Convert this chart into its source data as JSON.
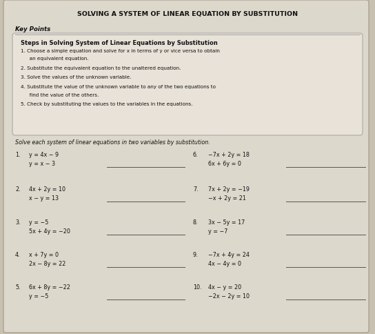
{
  "title": "SOLVING A SYSTEM OF LINEAR EQUATION BY SUBSTITUTION",
  "bg_color": "#c8c0b0",
  "paper_color": "#ddd8cc",
  "key_points_label": "Key Points",
  "box_title": "Steps in Solving System of Linear Equations by Substitution",
  "steps": [
    "1. Choose a simple equation and solve for x in terms of y or vice versa to obtain\n   an equivalent equation.",
    "2. Substitute the equivalent equation to the unaltered equation.",
    "3. Solve the values of the unknown variable.",
    "4. Substitute the value of the unknown variable to any of the two equations to\n   find the value of the others.",
    "5. Check by substituting the values to the variables in the equations."
  ],
  "solve_instruction": "Solve each system of linear equations in two variables by substitution.",
  "problems_left": [
    {
      "num": "1.",
      "eq1": "y = 4x − 9",
      "eq2": "y = x − 3"
    },
    {
      "num": "2.",
      "eq1": "4x + 2y = 10",
      "eq2": "x − y = 13"
    },
    {
      "num": "3.",
      "eq1": "y = −5",
      "eq2": "5x + 4y = −20"
    },
    {
      "num": "4.",
      "eq1": "x + 7y = 0",
      "eq2": "2x − 8y = 22"
    },
    {
      "num": "5.",
      "eq1": "6x + 8y = −22",
      "eq2": "y = −5"
    }
  ],
  "problems_right": [
    {
      "num": "6.",
      "eq1": "−7x + 2y = 18",
      "eq2": "6x + 6y = 0"
    },
    {
      "num": "7.",
      "eq1": "7x + 2y = −19",
      "eq2": "−x + 2y = 21"
    },
    {
      "num": "8.",
      "eq1": "3x − 5y = 17",
      "eq2": "y = −7"
    },
    {
      "num": "9.",
      "eq1": "−7x + 4y = 24",
      "eq2": "4x − 4y = 0"
    },
    {
      "num": "10.",
      "eq1": "4x − y = 20",
      "eq2": "−2x − 2y = 10"
    }
  ]
}
